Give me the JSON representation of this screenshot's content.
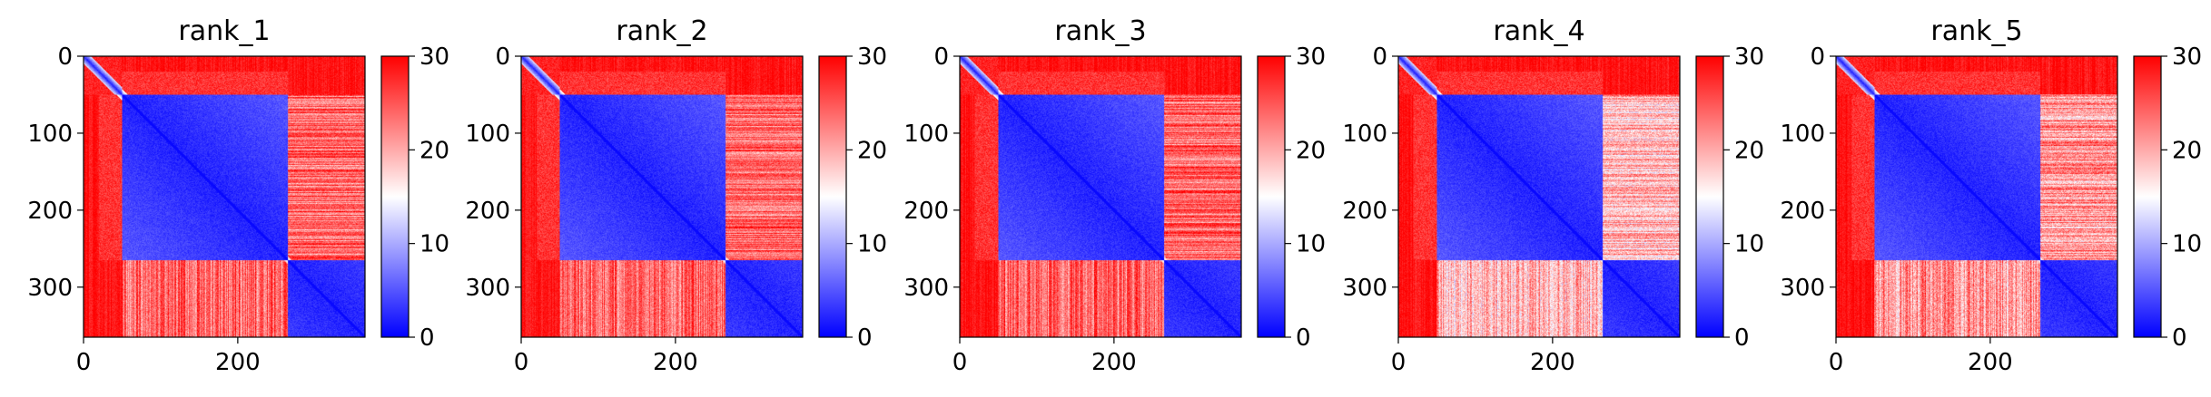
{
  "chart_data": [
    {
      "type": "heatmap",
      "title": "rank_1",
      "x_ticks": [
        "0",
        "200"
      ],
      "y_ticks": [
        "0",
        "100",
        "200",
        "300"
      ],
      "xlim": [
        0,
        365
      ],
      "ylim": [
        365,
        0
      ],
      "matrix_size": 365,
      "colorbar": {
        "ticks": [
          "0",
          "10",
          "20",
          "30"
        ],
        "range": [
          0,
          30
        ],
        "colormap": "bwr"
      },
      "blocks": [
        [
          0,
          20
        ],
        [
          20,
          50
        ],
        [
          50,
          265
        ],
        [
          265,
          365
        ]
      ],
      "variant": 1
    },
    {
      "type": "heatmap",
      "title": "rank_2",
      "x_ticks": [
        "0",
        "200"
      ],
      "y_ticks": [
        "0",
        "100",
        "200",
        "300"
      ],
      "xlim": [
        0,
        365
      ],
      "ylim": [
        365,
        0
      ],
      "matrix_size": 365,
      "colorbar": {
        "ticks": [
          "0",
          "10",
          "20",
          "30"
        ],
        "range": [
          0,
          30
        ],
        "colormap": "bwr"
      },
      "blocks": [
        [
          0,
          20
        ],
        [
          20,
          50
        ],
        [
          50,
          265
        ],
        [
          265,
          365
        ]
      ],
      "variant": 2
    },
    {
      "type": "heatmap",
      "title": "rank_3",
      "x_ticks": [
        "0",
        "200"
      ],
      "y_ticks": [
        "0",
        "100",
        "200",
        "300"
      ],
      "xlim": [
        0,
        365
      ],
      "ylim": [
        365,
        0
      ],
      "matrix_size": 365,
      "colorbar": {
        "ticks": [
          "0",
          "10",
          "20",
          "30"
        ],
        "range": [
          0,
          30
        ],
        "colormap": "bwr"
      },
      "blocks": [
        [
          0,
          20
        ],
        [
          20,
          50
        ],
        [
          50,
          265
        ],
        [
          265,
          365
        ]
      ],
      "variant": 3
    },
    {
      "type": "heatmap",
      "title": "rank_4",
      "x_ticks": [
        "0",
        "200"
      ],
      "y_ticks": [
        "0",
        "100",
        "200",
        "300"
      ],
      "xlim": [
        0,
        365
      ],
      "ylim": [
        365,
        0
      ],
      "matrix_size": 365,
      "colorbar": {
        "ticks": [
          "0",
          "10",
          "20",
          "30"
        ],
        "range": [
          0,
          30
        ],
        "colormap": "bwr"
      },
      "blocks": [
        [
          0,
          20
        ],
        [
          20,
          50
        ],
        [
          50,
          265
        ],
        [
          265,
          365
        ]
      ],
      "variant": 4
    },
    {
      "type": "heatmap",
      "title": "rank_5",
      "x_ticks": [
        "0",
        "200"
      ],
      "y_ticks": [
        "0",
        "100",
        "200",
        "300"
      ],
      "xlim": [
        0,
        365
      ],
      "ylim": [
        365,
        0
      ],
      "matrix_size": 365,
      "colorbar": {
        "ticks": [
          "0",
          "10",
          "20",
          "30"
        ],
        "range": [
          0,
          30
        ],
        "colormap": "bwr"
      },
      "blocks": [
        [
          0,
          20
        ],
        [
          20,
          50
        ],
        [
          50,
          265
        ],
        [
          265,
          365
        ]
      ],
      "variant": 5
    }
  ],
  "colors": {
    "low": "#0000ff",
    "mid": "#ffffff",
    "high": "#ff0000"
  }
}
